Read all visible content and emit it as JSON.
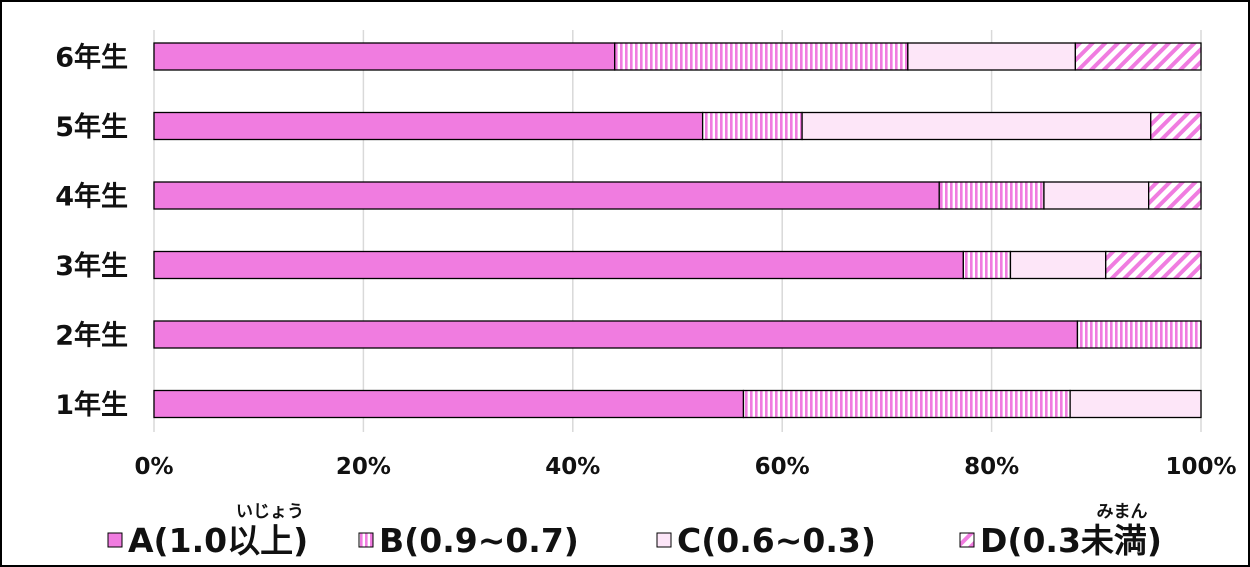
{
  "chart_data": {
    "type": "bar",
    "orientation": "horizontal",
    "stacked": "percent",
    "categories": [
      "6年生",
      "5年生",
      "4年生",
      "3年生",
      "2年生",
      "1年生"
    ],
    "series": [
      {
        "name": "A(1.0以上)",
        "ruby": "いじょう",
        "values": [
          44,
          52.4,
          75,
          77.3,
          88.2,
          56.3
        ],
        "color": "#f07ce0",
        "pattern": "solid"
      },
      {
        "name": "B(0.9~0.7)",
        "ruby": "",
        "values": [
          28,
          9.5,
          10,
          4.5,
          11.8,
          31.2
        ],
        "color": "#f07ce0",
        "pattern": "vertical-stripes"
      },
      {
        "name": "C(0.6~0.3)",
        "ruby": "",
        "values": [
          16,
          33.3,
          10,
          9.1,
          0,
          12.5
        ],
        "color": "#fde6f8",
        "pattern": "solid-light"
      },
      {
        "name": "D(0.3未満)",
        "ruby": "みまん",
        "values": [
          12,
          4.8,
          5,
          9.1,
          0,
          0
        ],
        "color": "#f07ce0",
        "pattern": "diagonal-stripes"
      }
    ],
    "xlim": [
      0,
      100
    ],
    "x_ticks": [
      "0%",
      "20%",
      "40%",
      "60%",
      "80%",
      "100%"
    ],
    "grid": "vertical",
    "legend_position": "bottom"
  }
}
